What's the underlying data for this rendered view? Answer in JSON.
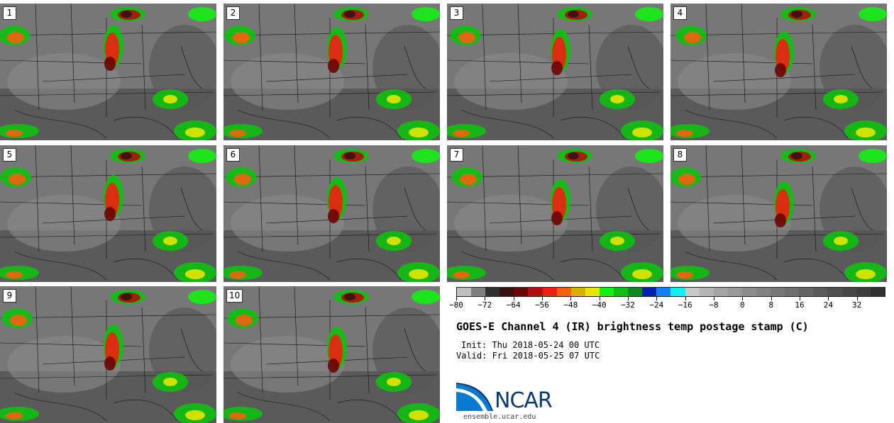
{
  "panels": [
    {
      "label": "1"
    },
    {
      "label": "2"
    },
    {
      "label": "3"
    },
    {
      "label": "4"
    },
    {
      "label": "5"
    },
    {
      "label": "6"
    },
    {
      "label": "7"
    },
    {
      "label": "8"
    },
    {
      "label": "9"
    },
    {
      "label": "10"
    }
  ],
  "colorbar": {
    "colors": [
      "#bfbfbf",
      "#7f7f7f",
      "#303030",
      "#3a1010",
      "#6a0606",
      "#b01010",
      "#ee2010",
      "#f46010",
      "#dab000",
      "#e6e600",
      "#14f014",
      "#10c010",
      "#0a8a20",
      "#0020b0",
      "#1080f0",
      "#10f0f0",
      "#c8c8c8",
      "#b4b4b4",
      "#a4a4a4",
      "#989898",
      "#8c8c8c",
      "#828282",
      "#787878",
      "#6e6e6e",
      "#646464",
      "#5a5a5a",
      "#505050",
      "#464646",
      "#3c3c3c",
      "#303030"
    ],
    "ticks": [
      "−80",
      "−72",
      "−64",
      "−56",
      "−48",
      "−40",
      "−32",
      "−24",
      "−16",
      "−8",
      "0",
      "8",
      "16",
      "24",
      "32"
    ]
  },
  "title": "GOES-E Channel 4 (IR) brightness temp postage stamp (C)",
  "init": "Init: Thu 2018-05-24 00 UTC",
  "valid": "Valid: Fri 2018-05-25 07 UTC",
  "logo": {
    "name": "NCAR",
    "url": "ensemble.ucar.edu"
  }
}
